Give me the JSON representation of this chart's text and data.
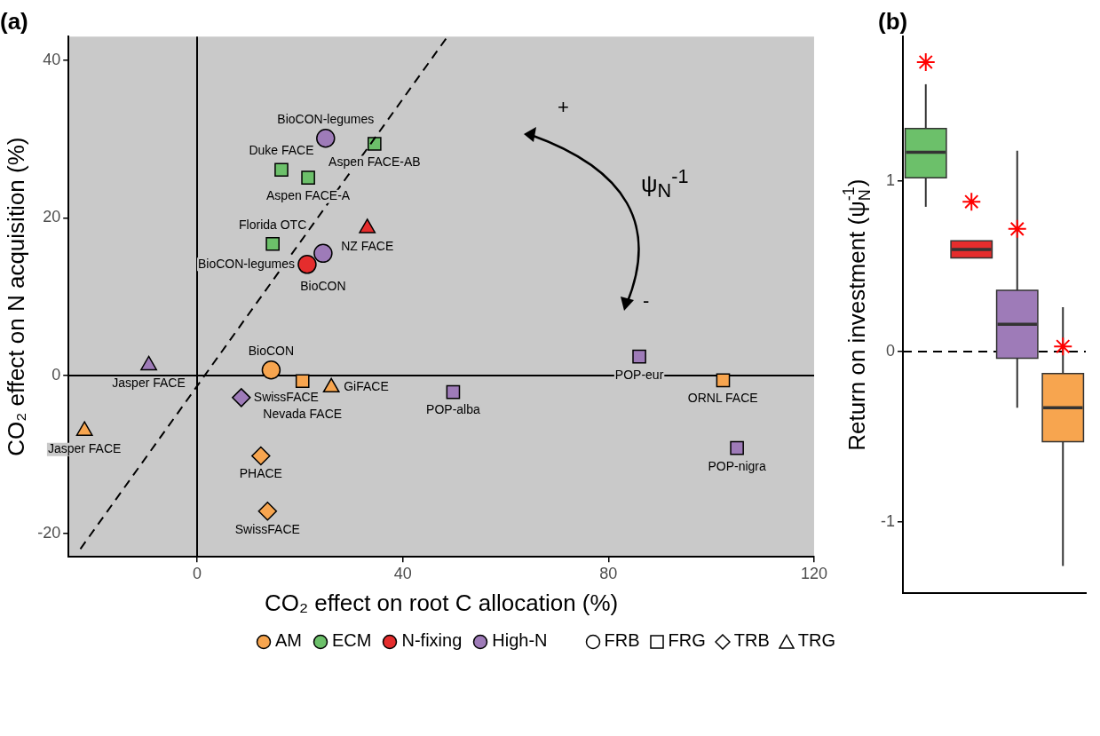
{
  "chart_data": [
    {
      "type": "scatter",
      "title": "(a)",
      "xlabel": "CO₂ effect on root C allocation (%)",
      "ylabel": "CO₂ effect on N acquisition (%)",
      "xlim": [
        -25,
        120
      ],
      "xticks": [
        0,
        40,
        80,
        120
      ],
      "ylim": [
        -23,
        43
      ],
      "yticks": [
        -20,
        0,
        20,
        40
      ],
      "grid": false,
      "legend": "bottom",
      "series": [
        {
          "name": "AM",
          "color": "#f7a54f",
          "marker": "circle",
          "x": [
            14.4
          ],
          "values": [
            0.7
          ]
        },
        {
          "color": "#f7a54f",
          "marker": "square",
          "x": [
            20.5,
            102.3
          ],
          "values": [
            -0.7,
            -0.6
          ]
        },
        {
          "color": "#f7a54f",
          "marker": "triangle",
          "x": [
            26.1,
            -21.9
          ],
          "values": [
            -1.5,
            -7.0
          ]
        },
        {
          "color": "#f7a54f",
          "marker": "diamond",
          "x": [
            12.4,
            13.7
          ],
          "values": [
            -10.2,
            -17.2
          ]
        },
        {
          "name": "ECM",
          "color": "#6cc06a",
          "marker": "square",
          "x": [
            34.5,
            16.4,
            21.6,
            14.7
          ],
          "values": [
            29.4,
            26.1,
            25.1,
            16.7
          ]
        },
        {
          "name": "N-fixing",
          "color": "#e52d2d",
          "marker": "circle",
          "x": [
            21.4
          ],
          "values": [
            14.1
          ]
        },
        {
          "color": "#e52d2d",
          "marker": "triangle",
          "x": [
            33.1
          ],
          "values": [
            18.7
          ]
        },
        {
          "name": "High-N",
          "color": "#9e7bb8",
          "marker": "circle",
          "x": [
            25,
            24.5
          ],
          "values": [
            30.1,
            15.5
          ]
        },
        {
          "color": "#9e7bb8",
          "marker": "triangle",
          "x": [
            -9.4
          ],
          "values": [
            1.3
          ]
        },
        {
          "color": "#9e7bb8",
          "marker": "square",
          "x": [
            86,
            49.8,
            105
          ],
          "values": [
            2.4,
            -2.1,
            -9.2
          ]
        },
        {
          "color": "#9e7bb8",
          "marker": "diamond",
          "x": [
            8.6
          ],
          "values": [
            -2.8
          ]
        },
        {
          "type": "line",
          "color": "#000000",
          "line_style": "dashed",
          "marker": "none",
          "x": [
            -22.7,
            48.7
          ],
          "values": [
            -22,
            43
          ]
        }
      ],
      "ref_lines": [
        {
          "axis": "x",
          "value": 0,
          "color": "#000000"
        },
        {
          "axis": "y",
          "value": 0,
          "color": "#000000"
        }
      ],
      "annotations": [
        {
          "text": "BioCON-legumes",
          "x": 25,
          "y": 30.1
        },
        {
          "text": "Aspen FACE-AB",
          "x": 34.5,
          "y": 29.4
        },
        {
          "text": "Duke FACE",
          "x": 16.4,
          "y": 26.1
        },
        {
          "text": "Aspen FACE-A",
          "x": 21.6,
          "y": 25.1
        },
        {
          "text": "NZ FACE",
          "x": 33.1,
          "y": 18.7
        },
        {
          "text": "Florida OTC",
          "x": 14.7,
          "y": 16.7
        },
        {
          "text": "BioCON",
          "x": 24.5,
          "y": 15.5
        },
        {
          "text": "BioCON-legumes",
          "x": 21.4,
          "y": 14.1
        },
        {
          "text": "BioCON",
          "x": 14.4,
          "y": 0.7
        },
        {
          "text": "Nevada FACE",
          "x": 20.5,
          "y": -0.7
        },
        {
          "text": "Jasper FACE",
          "x": -9.4,
          "y": 1.3
        },
        {
          "text": "GiFACE",
          "x": 26.1,
          "y": -1.5
        },
        {
          "text": "POP-alba",
          "x": 49.8,
          "y": -2.1
        },
        {
          "text": "POP-eur",
          "x": 86,
          "y": 2.4
        },
        {
          "text": "ORNL FACE",
          "x": 102.3,
          "y": -0.6
        },
        {
          "text": "SwissFACE",
          "x": 8.6,
          "y": -2.8
        },
        {
          "text": "Jasper FACE",
          "x": -21.9,
          "y": -7.0
        },
        {
          "text": "PHACE",
          "x": 12.4,
          "y": -10.2
        },
        {
          "text": "SwissFACE",
          "x": 13.7,
          "y": -17.2
        },
        {
          "text": "POP-nigra",
          "x": 105,
          "y": -9.2
        },
        "+",
        "-",
        "ψ$_{N}$$^{-1}$",
        "FRB",
        "FRG",
        "TRB",
        "TRG"
      ]
    },
    {
      "type": "box",
      "title": "(b)",
      "ylabel": "Return on investment (ψ$_{N}$$^{-1}$)",
      "categories": [
        null,
        null,
        null,
        null
      ],
      "ylim": [
        -1.42,
        1.85
      ],
      "yticks": [
        -1,
        0,
        1
      ],
      "colors": [
        "#6cc06a",
        "#e52d2d",
        "#9e7bb8",
        "#f7a54f"
      ],
      "boxes": [
        {
          "low": 0.85,
          "q1": 1.02,
          "median": 1.17,
          "q3": 1.31,
          "high": 1.57
        },
        {
          "low": 0.55,
          "q1": 0.55,
          "median": 0.6,
          "q3": 0.65,
          "high": 0.65
        },
        {
          "low": -0.33,
          "q1": -0.04,
          "median": 0.16,
          "q3": 0.36,
          "high": 1.18
        },
        {
          "low": -1.26,
          "q1": -0.53,
          "median": -0.33,
          "q3": -0.13,
          "high": 0.26
        }
      ],
      "series": [
        {
          "type": "scatter",
          "color": "#ff0000",
          "marker": "cross",
          "values": [
            1.7,
            0.88,
            0.72,
            0.03
          ]
        }
      ],
      "ref_lines": [
        {
          "axis": "y",
          "value": 0,
          "line_style": "dashed",
          "color": "#000000"
        }
      ]
    }
  ]
}
